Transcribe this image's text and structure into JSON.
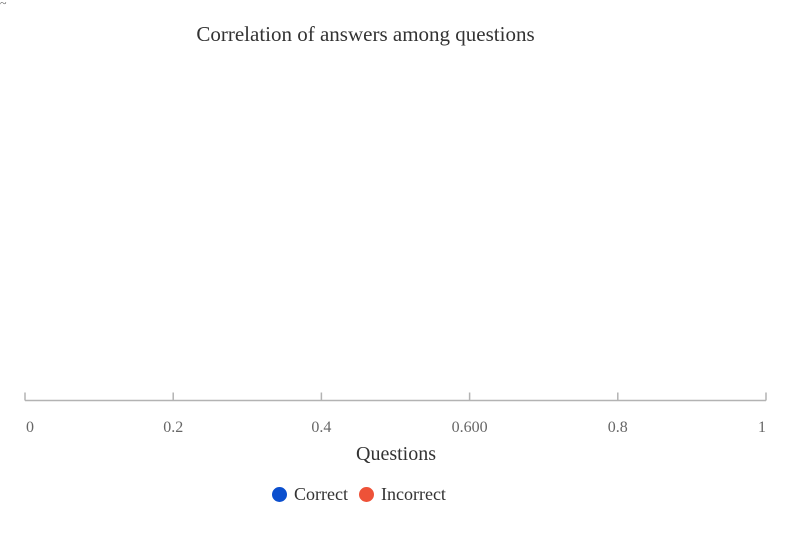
{
  "corner_glyph": "~",
  "chart_data": {
    "type": "scatter",
    "title": "Correlation of answers among questions",
    "xlabel": "Questions",
    "ylabel": "",
    "xlim": [
      0,
      1
    ],
    "x_ticks": [
      "0",
      "0.2",
      "0.4",
      "0.600",
      "0.8",
      "1"
    ],
    "grid": false,
    "legend_position": "bottom-center",
    "series": [
      {
        "name": "Correct",
        "color": "#0b4fce",
        "points": []
      },
      {
        "name": "Incorrect",
        "color": "#ee5238",
        "points": []
      }
    ]
  }
}
